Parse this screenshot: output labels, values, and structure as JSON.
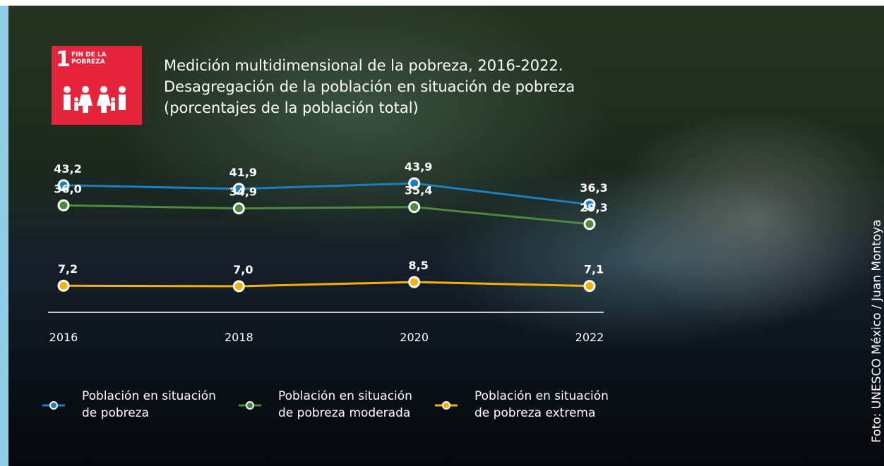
{
  "badge": {
    "number": "1",
    "label": "FIN DE LA POBREZA"
  },
  "credit": "Foto: UNESCO México / Juan Montoya",
  "chart_data": {
    "type": "line",
    "title": "Medición multidimensional de la pobreza, 2016-2022.",
    "subtitle": "Desagregación de la población en situación de pobreza (porcentajes de la población total)",
    "x": [
      2016,
      2018,
      2020,
      2022
    ],
    "series": [
      {
        "name": "Población en situación de pobreza",
        "color": "#1b7fc2",
        "values": [
          43.2,
          41.9,
          43.9,
          36.3
        ],
        "value_labels": [
          "43,2",
          "41,9",
          "43,9",
          "36,3"
        ]
      },
      {
        "name": "Población en situación de pobreza moderada",
        "color": "#4b8b3b",
        "values": [
          36.0,
          34.9,
          35.4,
          29.3
        ],
        "value_labels": [
          "36,0",
          "34,9",
          "35,4",
          "29,3"
        ]
      },
      {
        "name": "Población en situación de pobreza extrema",
        "color": "#f5b300",
        "values": [
          7.2,
          7.0,
          8.5,
          7.1
        ],
        "value_labels": [
          "7,2",
          "7,0",
          "8,5",
          "7,1"
        ]
      }
    ]
  }
}
